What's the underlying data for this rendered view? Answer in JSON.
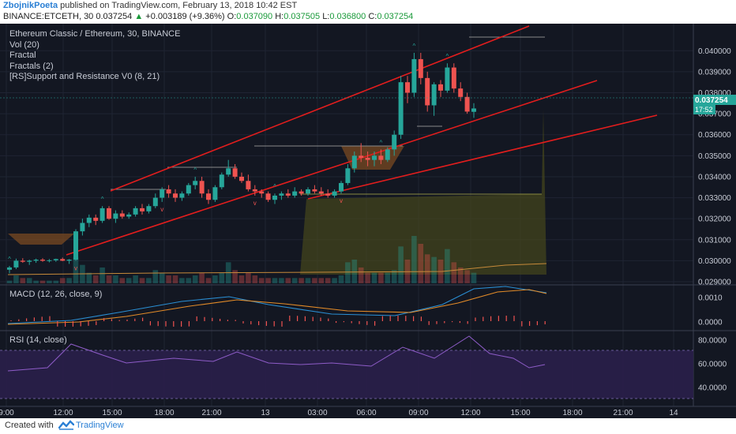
{
  "header": {
    "author": "ZbojnikPoeta",
    "published_text": "published on TradingView.com, February 13, 2018 10:42 EST",
    "symbol": "BINANCE:ETCETH, 30",
    "last": "0.037254",
    "change_arrow": "▲",
    "change": "+0.003189 (+9.36%)",
    "o_label": "O:",
    "o_value": "0.037090",
    "h_label": "H:",
    "h_value": "0.037505",
    "l_label": "L:",
    "l_value": "0.036800",
    "c_label": "C:",
    "c_value": "0.037254"
  },
  "legend": {
    "title": "Ethereum Classic / Ethereum, 30, BINANCE",
    "vol": "Vol (20)",
    "fractal": "Fractal",
    "fractals": "Fractals (2)",
    "sr": "[RS]Support and Resistance V0 (8, 21)"
  },
  "macd_label": "MACD (12, 26, close, 9)",
  "rsi_label": "RSI (14, close)",
  "price_badge": "0.037254",
  "timer_badge": "17:52",
  "footer": {
    "created_with": "Created with",
    "brand": "TradingView"
  },
  "colors": {
    "up": "#26a69a",
    "down": "#ef5350",
    "trend": "#e21d1d",
    "background": "#131722",
    "accent": "#2a7fd4"
  },
  "chart_data": [
    {
      "type": "candlestick",
      "title": "Ethereum Classic / Ethereum, 30, BINANCE",
      "x_ticks": [
        "9:00",
        "12:00",
        "15:00",
        "18:00",
        "21:00",
        "13",
        "03:00",
        "06:00",
        "09:00",
        "12:00",
        "15:00",
        "18:00",
        "21:00",
        "14"
      ],
      "y_ticks": [
        "0.040000",
        "0.039000",
        "0.038000",
        "0.037000",
        "0.036000",
        "0.035000",
        "0.034000",
        "0.033000",
        "0.032000",
        "0.031000",
        "0.030000",
        "0.029000"
      ],
      "ylim": [
        0.0287,
        0.0411
      ],
      "candles": [
        [
          0.02957,
          0.02975,
          0.0294,
          0.02968
        ],
        [
          0.02968,
          0.0301,
          0.0296,
          0.03
        ],
        [
          0.03,
          0.03012,
          0.0299,
          0.02995
        ],
        [
          0.02995,
          0.03005,
          0.0298,
          0.03
        ],
        [
          0.03,
          0.0301,
          0.0299,
          0.03005
        ],
        [
          0.03005,
          0.03012,
          0.02995,
          0.03
        ],
        [
          0.03,
          0.03008,
          0.02992,
          0.03002
        ],
        [
          0.03002,
          0.0301,
          0.02995,
          0.03008
        ],
        [
          0.03008,
          0.03015,
          0.02998,
          0.03
        ],
        [
          0.03,
          0.03008,
          0.02985,
          0.03005
        ],
        [
          0.03005,
          0.0315,
          0.03,
          0.0314
        ],
        [
          0.0314,
          0.032,
          0.0312,
          0.0318
        ],
        [
          0.0318,
          0.0322,
          0.0316,
          0.03205
        ],
        [
          0.03205,
          0.0322,
          0.0317,
          0.0319
        ],
        [
          0.0319,
          0.0326,
          0.0318,
          0.0325
        ],
        [
          0.0325,
          0.0326,
          0.03195,
          0.032
        ],
        [
          0.032,
          0.0324,
          0.0318,
          0.03225
        ],
        [
          0.03225,
          0.0324,
          0.032,
          0.0321
        ],
        [
          0.0321,
          0.0323,
          0.032,
          0.0322
        ],
        [
          0.0322,
          0.0326,
          0.0321,
          0.0325
        ],
        [
          0.0325,
          0.0327,
          0.0322,
          0.03235
        ],
        [
          0.03235,
          0.0327,
          0.03225,
          0.0326
        ],
        [
          0.0326,
          0.0332,
          0.0325,
          0.033
        ],
        [
          0.033,
          0.0335,
          0.0328,
          0.0334
        ],
        [
          0.0334,
          0.0336,
          0.033,
          0.0332
        ],
        [
          0.0332,
          0.0334,
          0.0328,
          0.033
        ],
        [
          0.033,
          0.0333,
          0.03285,
          0.0332
        ],
        [
          0.0332,
          0.0337,
          0.0331,
          0.0336
        ],
        [
          0.0336,
          0.034,
          0.0334,
          0.0338
        ],
        [
          0.0338,
          0.034,
          0.033,
          0.0332
        ],
        [
          0.0332,
          0.0334,
          0.0327,
          0.0329
        ],
        [
          0.0329,
          0.0336,
          0.0328,
          0.0335
        ],
        [
          0.0335,
          0.0342,
          0.0334,
          0.0341
        ],
        [
          0.0341,
          0.0348,
          0.034,
          0.0344
        ],
        [
          0.0344,
          0.0346,
          0.0339,
          0.034
        ],
        [
          0.034,
          0.0342,
          0.0337,
          0.0338
        ],
        [
          0.0338,
          0.0341,
          0.0333,
          0.0334
        ],
        [
          0.0334,
          0.0336,
          0.0331,
          0.0333
        ],
        [
          0.0333,
          0.0334,
          0.033,
          0.0332
        ],
        [
          0.0332,
          0.0333,
          0.0328,
          0.0329
        ],
        [
          0.0329,
          0.0332,
          0.0327,
          0.0331
        ],
        [
          0.0331,
          0.0333,
          0.0329,
          0.0332
        ],
        [
          0.0332,
          0.0334,
          0.033,
          0.0331
        ],
        [
          0.0331,
          0.0335,
          0.033,
          0.0333
        ],
        [
          0.0333,
          0.0334,
          0.0331,
          0.0332
        ],
        [
          0.0332,
          0.0335,
          0.0331,
          0.0334
        ],
        [
          0.0334,
          0.0336,
          0.0332,
          0.0333
        ],
        [
          0.0333,
          0.0335,
          0.0331,
          0.0332
        ],
        [
          0.0332,
          0.0334,
          0.033,
          0.0331
        ],
        [
          0.0331,
          0.0334,
          0.033,
          0.0333
        ],
        [
          0.0333,
          0.0338,
          0.0332,
          0.0337
        ],
        [
          0.0337,
          0.0346,
          0.0336,
          0.0344
        ],
        [
          0.0344,
          0.0352,
          0.0342,
          0.035
        ],
        [
          0.035,
          0.0356,
          0.0347,
          0.0349
        ],
        [
          0.0349,
          0.0352,
          0.0345,
          0.0348
        ],
        [
          0.0348,
          0.0352,
          0.0345,
          0.035
        ],
        [
          0.035,
          0.0353,
          0.0346,
          0.0348
        ],
        [
          0.0348,
          0.0354,
          0.0347,
          0.0353
        ],
        [
          0.0353,
          0.0362,
          0.035,
          0.036
        ],
        [
          0.036,
          0.0388,
          0.0358,
          0.0385
        ],
        [
          0.0385,
          0.0388,
          0.0375,
          0.038
        ],
        [
          0.038,
          0.0399,
          0.0378,
          0.0396
        ],
        [
          0.0396,
          0.0399,
          0.0384,
          0.0387
        ],
        [
          0.0387,
          0.039,
          0.0371,
          0.0374
        ],
        [
          0.0374,
          0.0385,
          0.0369,
          0.0384
        ],
        [
          0.0384,
          0.0386,
          0.0378,
          0.0381
        ],
        [
          0.0381,
          0.0394,
          0.038,
          0.0392
        ],
        [
          0.0392,
          0.0394,
          0.038,
          0.0382
        ],
        [
          0.0382,
          0.0385,
          0.0376,
          0.0378
        ],
        [
          0.0378,
          0.038,
          0.037,
          0.0371
        ],
        [
          0.03709,
          0.0375,
          0.0368,
          0.03725
        ]
      ],
      "volume": [
        1,
        3,
        2,
        2,
        1,
        1,
        1,
        1,
        2,
        2,
        10,
        7,
        4,
        3,
        6,
        3,
        3,
        2,
        2,
        3,
        2,
        2,
        5,
        4,
        3,
        3,
        2,
        2,
        3,
        4,
        2,
        3,
        4,
        8,
        5,
        3,
        4,
        3,
        2,
        2,
        2,
        2,
        2,
        2,
        2,
        2,
        2,
        2,
        2,
        2,
        3,
        8,
        9,
        6,
        4,
        4,
        4,
        4,
        5,
        14,
        9,
        18,
        15,
        11,
        10,
        9,
        13,
        8,
        6,
        5,
        4
      ],
      "fractals_up": [
        0,
        14,
        28,
        40,
        56,
        61,
        66
      ],
      "fractals_down": [
        10,
        23,
        37,
        50
      ],
      "series": [
        {
          "name": "MACD (12, 26, close, 9)",
          "y_ticks": [
            "0.0010",
            "0.0000"
          ]
        },
        {
          "name": "RSI (14, close)",
          "y_ticks": [
            "80.0000",
            "60.0000",
            "40.0000"
          ]
        }
      ]
    }
  ]
}
